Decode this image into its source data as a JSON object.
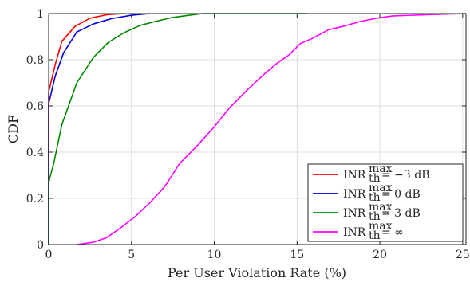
{
  "chart_data": {
    "type": "line",
    "xlabel": "Per User Violation Rate (%)",
    "ylabel": "CDF",
    "xlim": [
      0,
      25.2
    ],
    "ylim": [
      0,
      1
    ],
    "xticks": [
      0,
      5,
      10,
      15,
      20,
      25
    ],
    "yticks": [
      0,
      0.2,
      0.4,
      0.6,
      0.8,
      1
    ],
    "xtick_labels": [
      "0",
      "5",
      "10",
      "15",
      "20",
      "25"
    ],
    "ytick_labels": [
      "0",
      "0.2",
      "0.4",
      "0.6",
      "0.8",
      "1"
    ],
    "grid": true,
    "legend_position": "bottom-right",
    "series": [
      {
        "name_base": "INR",
        "name_sub": "th",
        "name_sup": "max",
        "name_rest": " = −3 dB",
        "color": "#ff0000",
        "points": [
          [
            0,
            0
          ],
          [
            0,
            0.66
          ],
          [
            0.4,
            0.78
          ],
          [
            0.8,
            0.88
          ],
          [
            1.6,
            0.945
          ],
          [
            2.5,
            0.98
          ],
          [
            3.5,
            0.995
          ],
          [
            4.5,
            1.0
          ]
        ]
      },
      {
        "name_base": "INR",
        "name_sub": "th",
        "name_sup": "max",
        "name_rest": " = 0 dB",
        "color": "#0000dd",
        "points": [
          [
            0,
            0
          ],
          [
            0,
            0.61
          ],
          [
            0.4,
            0.73
          ],
          [
            0.9,
            0.83
          ],
          [
            1.7,
            0.92
          ],
          [
            2.7,
            0.955
          ],
          [
            3.8,
            0.978
          ],
          [
            5.0,
            0.993
          ],
          [
            6.1,
            1.0
          ]
        ]
      },
      {
        "name_base": "INR",
        "name_sub": "th",
        "name_sup": "max",
        "name_rest": " = 3 dB",
        "color": "#008a00",
        "points": [
          [
            0,
            0
          ],
          [
            0,
            0.27
          ],
          [
            0.3,
            0.35
          ],
          [
            0.8,
            0.52
          ],
          [
            1.7,
            0.7
          ],
          [
            2.7,
            0.81
          ],
          [
            3.6,
            0.875
          ],
          [
            4.5,
            0.915
          ],
          [
            5.5,
            0.948
          ],
          [
            6.4,
            0.965
          ],
          [
            7.4,
            0.982
          ],
          [
            8.5,
            0.993
          ],
          [
            9.3,
            1.0
          ],
          [
            12.0,
            1.0
          ],
          [
            15.6,
            1.0
          ]
        ]
      },
      {
        "name_base": "INR",
        "name_sub": "th",
        "name_sup": "max",
        "name_rest": " = ∞",
        "color": "#ff00ff",
        "points": [
          [
            1.7,
            0.0
          ],
          [
            2.7,
            0.01
          ],
          [
            3.5,
            0.03
          ],
          [
            4.3,
            0.07
          ],
          [
            5.2,
            0.12
          ],
          [
            6.1,
            0.18
          ],
          [
            7.0,
            0.25
          ],
          [
            7.9,
            0.35
          ],
          [
            9.0,
            0.43
          ],
          [
            10.0,
            0.51
          ],
          [
            10.9,
            0.59
          ],
          [
            12.0,
            0.67
          ],
          [
            12.9,
            0.73
          ],
          [
            13.7,
            0.78
          ],
          [
            14.5,
            0.82
          ],
          [
            15.2,
            0.87
          ],
          [
            16.0,
            0.895
          ],
          [
            16.9,
            0.93
          ],
          [
            17.8,
            0.945
          ],
          [
            18.8,
            0.965
          ],
          [
            19.8,
            0.98
          ],
          [
            20.8,
            0.99
          ],
          [
            22.8,
            0.995
          ],
          [
            25.2,
            1.0
          ]
        ]
      }
    ]
  }
}
